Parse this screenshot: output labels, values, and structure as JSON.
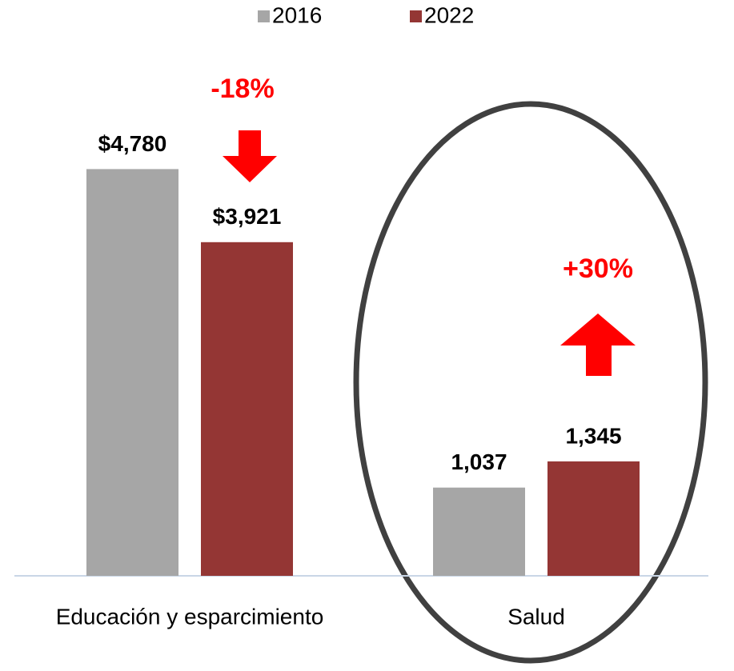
{
  "chart_data": {
    "type": "bar",
    "categories": [
      "Educación y esparcimiento",
      "Salud"
    ],
    "series": [
      {
        "name": "2016",
        "color": "#a6a6a6",
        "values": [
          4780,
          1037
        ],
        "value_labels": [
          "$4,780",
          "1,037"
        ]
      },
      {
        "name": "2022",
        "color": "#943634",
        "values": [
          3921,
          1345
        ],
        "value_labels": [
          "$3,921",
          "1,345"
        ]
      }
    ],
    "ylim": [
      0,
      5000
    ],
    "annotations": [
      {
        "text": "-18%",
        "color": "#ff0000"
      },
      {
        "text": "+30%",
        "color": "#ff0000"
      }
    ],
    "legend": "top"
  }
}
